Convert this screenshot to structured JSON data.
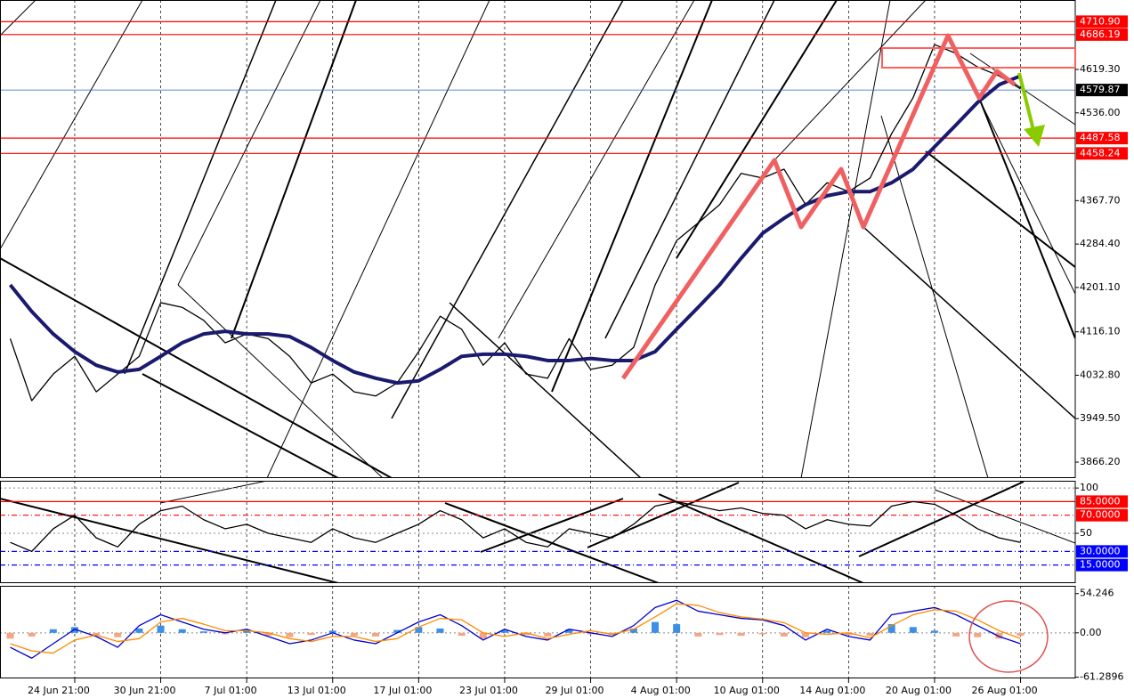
{
  "chart_data": [
    {
      "type": "line",
      "categories": [
        null,
        null,
        null,
        "24 Jun 21:00",
        null,
        null,
        null,
        "30 Jun 21:00",
        null,
        null,
        null,
        "7 Jul 01:00",
        null,
        null,
        null,
        "13 Jul 01:00",
        null,
        null,
        null,
        "17 Jul 01:00",
        null,
        null,
        null,
        "23 Jul 01:00",
        null,
        null,
        null,
        "29 Jul 01:00",
        null,
        null,
        null,
        "4 Aug 01:00",
        null,
        null,
        null,
        "10 Aug 01:00",
        null,
        null,
        null,
        "14 Aug 01:00",
        null,
        null,
        null,
        "20 Aug 01:00",
        null,
        null,
        null,
        "26 Aug 01:00"
      ],
      "series": [
        {
          "color": "#000000",
          "values": [
            4103,
            3984,
            4035,
            4069,
            4001,
            4035,
            4069,
            4172,
            4163,
            4138,
            4095,
            4112,
            4103,
            4069,
            4018,
            4035,
            4001,
            3993,
            4018,
            4078,
            4146,
            4121,
            4052,
            4095,
            4035,
            4027,
            4103,
            4044,
            4052,
            4086,
            4206,
            4291,
            4325,
            4360,
            4420,
            4411,
            4428,
            4360,
            4402,
            4385,
            4411,
            4496,
            4565,
            4667,
            4650,
            4624,
            4607,
            4582
          ]
        },
        {
          "color": "#1a1a6e",
          "values": [
            4206,
            4155,
            4112,
            4078,
            4052,
            4039,
            4044,
            4069,
            4095,
            4112,
            4117,
            4112,
            4112,
            4107,
            4086,
            4061,
            4039,
            4027,
            4018,
            4022,
            4044,
            4069,
            4073,
            4073,
            4069,
            4061,
            4061,
            4065,
            4061,
            4061,
            4078,
            4121,
            4163,
            4206,
            4257,
            4305,
            4334,
            4360,
            4377,
            4385,
            4385,
            4402,
            4428,
            4471,
            4513,
            4556,
            4590,
            4607
          ]
        }
      ],
      "ylim": [
        3835.5,
        4752.5
      ],
      "yticks": [
        {
          "value": 4619.3,
          "label": "4619.30"
        },
        {
          "value": 4536,
          "label": "4536.00"
        },
        {
          "value": 4367.7,
          "label": "4367.70"
        },
        {
          "value": 4284.4,
          "label": "4284.40"
        },
        {
          "value": 4201.1,
          "label": "4201.10"
        },
        {
          "value": 4116.1,
          "label": "4116.10"
        },
        {
          "value": 4032.8,
          "label": "4032.80"
        },
        {
          "value": 3949.5,
          "label": "3949.50"
        },
        {
          "value": 3866.2,
          "label": "3866.20"
        }
      ],
      "levels": [
        {
          "value": 4710.9,
          "label": "4710.90",
          "color": "#ff0000"
        },
        {
          "value": 4686.19,
          "label": "4686.19",
          "color": "#ff0000"
        },
        {
          "value": 4487.58,
          "label": "4487.58",
          "color": "#ff0000"
        },
        {
          "value": 4458.24,
          "label": "4458.24",
          "color": "#ff0000"
        }
      ],
      "last_price": {
        "value": 4579.87,
        "label": "4579.87",
        "color": "#3060d0"
      }
    },
    {
      "type": "line",
      "series": [
        {
          "color": "#000000",
          "values": [
            40,
            30,
            55,
            70,
            45,
            35,
            60,
            75,
            80,
            65,
            55,
            60,
            50,
            45,
            40,
            55,
            45,
            40,
            50,
            60,
            75,
            65,
            45,
            55,
            40,
            35,
            55,
            50,
            45,
            60,
            80,
            85,
            80,
            75,
            78,
            72,
            70,
            55,
            65,
            60,
            58,
            80,
            85,
            82,
            70,
            55,
            45,
            40
          ]
        }
      ],
      "ylim": [
        -5,
        108
      ],
      "yticks": [
        100,
        50
      ],
      "levels": [
        {
          "value": 85,
          "label": "85.0000",
          "color": "#ff0000"
        },
        {
          "value": 70,
          "label": "70.0000",
          "color": "#ff0000"
        },
        {
          "value": 30,
          "label": "30.0000",
          "color": "#0000ff"
        },
        {
          "value": 15,
          "label": "15.0000",
          "color": "#0000ff"
        }
      ]
    },
    {
      "type": "bar",
      "series": [
        {
          "type": "bar",
          "color": "#3b8fe6",
          "negative_color": "#f4a582",
          "values": [
            -8,
            -5,
            5,
            8,
            -3,
            -6,
            6,
            10,
            5,
            2,
            -2,
            4,
            -4,
            -6,
            -3,
            3,
            -4,
            -5,
            4,
            8,
            6,
            -4,
            -8,
            3,
            -3,
            -5,
            5,
            -2,
            -3,
            6,
            15,
            12,
            -5,
            -3,
            -4,
            -2,
            -5,
            -6,
            3,
            -3,
            -4,
            12,
            8,
            3,
            -5,
            -6,
            -8,
            -4
          ]
        },
        {
          "type": "line",
          "color": "#0000cc",
          "values": [
            -20,
            -35,
            -15,
            5,
            -5,
            -20,
            10,
            25,
            15,
            5,
            0,
            5,
            -5,
            -15,
            -10,
            0,
            -10,
            -15,
            0,
            15,
            25,
            10,
            -10,
            5,
            -5,
            -10,
            5,
            0,
            -5,
            10,
            35,
            45,
            30,
            25,
            20,
            18,
            10,
            -10,
            5,
            -5,
            -10,
            25,
            30,
            35,
            25,
            10,
            -5,
            -15
          ]
        },
        {
          "type": "line",
          "color": "#ff8c00",
          "values": [
            -15,
            -25,
            -28,
            -10,
            -3,
            -12,
            -8,
            15,
            20,
            12,
            3,
            3,
            0,
            -8,
            -12,
            -5,
            -5,
            -12,
            -8,
            8,
            20,
            18,
            0,
            -5,
            0,
            -8,
            -2,
            3,
            -2,
            5,
            22,
            40,
            38,
            28,
            22,
            19,
            14,
            0,
            -2,
            0,
            -7,
            10,
            25,
            32,
            30,
            18,
            3,
            -8
          ]
        }
      ],
      "ylim": [
        -63,
        65
      ],
      "yticks": [
        54.246,
        {
          "value": 0,
          "label": "0.00"
        },
        -61.2896
      ]
    }
  ]
}
